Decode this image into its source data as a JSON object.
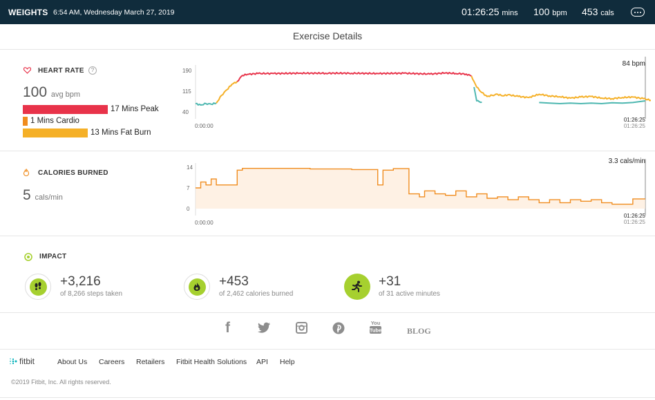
{
  "header": {
    "activity": "WEIGHTS",
    "datetime": "6:54 AM, Wednesday March 27, 2019",
    "duration_value": "01:26:25",
    "duration_unit": "mins",
    "bpm_value": "100",
    "bpm_unit": "bpm",
    "cals_value": "453",
    "cals_unit": "cals"
  },
  "page_title": "Exercise Details",
  "heart_rate": {
    "label": "HEART RATE",
    "help": "?",
    "avg_value": "100",
    "avg_unit": "avg bpm",
    "zones": [
      {
        "label": "17 Mins Peak",
        "color": "#e8334a"
      },
      {
        "label": "1 Mins Cardio",
        "color": "#f08c1e"
      },
      {
        "label": "13 Mins Fat Burn",
        "color": "#f5b027"
      }
    ],
    "current": "84 bpm",
    "start_time": "0:00:00",
    "end_time_1": "01:26:25",
    "end_time_2": "01:26:25"
  },
  "calories": {
    "label": "CALORIES BURNED",
    "avg_value": "5",
    "avg_unit": "cals/min",
    "current": "3.3 cals/min",
    "start_time": "0:00:00",
    "end_time_1": "01:26:25",
    "end_time_2": "01:26:25"
  },
  "impact": {
    "label": "IMPACT",
    "items": [
      {
        "value": "+3,216",
        "sub": "of 8,266 steps taken",
        "icon": "footsteps-icon"
      },
      {
        "value": "+453",
        "sub": "of 2,462 calories burned",
        "icon": "flame-icon"
      },
      {
        "value": "+31",
        "sub": "of 31 active minutes",
        "icon": "running-icon"
      }
    ]
  },
  "social": {
    "blog": "BLOG",
    "icons": [
      "facebook-icon",
      "twitter-icon",
      "instagram-icon",
      "pinterest-icon",
      "youtube-icon"
    ],
    "youtube_text": "You Tube"
  },
  "footer": {
    "brand": "fitbit",
    "links": [
      "About Us",
      "Careers",
      "Retailers",
      "Fitbit Health Solutions",
      "API",
      "Help"
    ],
    "copyright": "©2019 Fitbit, Inc. All rights reserved."
  },
  "chart_data": [
    {
      "type": "line",
      "title": "HEART RATE",
      "ylabel": "bpm",
      "yticks": [
        40,
        115,
        190
      ],
      "ylim": [
        40,
        190
      ],
      "xlim_minutes": [
        0,
        86.4
      ],
      "x_labels": [
        "0:00:00",
        "01:26:25"
      ],
      "series": [
        {
          "color": "#4db7b0",
          "x": [
            0,
            1,
            2,
            3,
            4
          ],
          "y": [
            70,
            65,
            70,
            68,
            72
          ]
        },
        {
          "color": "#f5b027",
          "x": [
            4,
            5,
            6,
            7,
            8
          ],
          "y": [
            72,
            100,
            120,
            140,
            150
          ]
        },
        {
          "color": "#e8334a",
          "x": [
            8,
            9,
            10,
            12,
            15,
            20,
            25,
            30,
            35,
            40,
            45,
            48,
            50,
            52,
            53
          ],
          "y": [
            150,
            172,
            176,
            179,
            179,
            180,
            180,
            180,
            179,
            180,
            177,
            181,
            179,
            177,
            170
          ]
        },
        {
          "color": "#f5b027",
          "x": [
            53,
            53.5,
            54,
            55,
            56,
            57,
            58,
            59,
            60,
            62,
            64,
            66,
            68,
            70,
            72,
            74,
            76,
            78,
            80,
            82,
            84,
            86,
            88
          ],
          "y": [
            170,
            150,
            130,
            110,
            96,
            100,
            104,
            98,
            102,
            96,
            92,
            104,
            98,
            95,
            90,
            94,
            96,
            90,
            88,
            92,
            94,
            88,
            80
          ]
        },
        {
          "color": "#4db7b0",
          "x": [
            53.5,
            54,
            55
          ],
          "y": [
            130,
            80,
            75
          ]
        }
      ]
    },
    {
      "type": "area",
      "title": "CALORIES BURNED",
      "ylabel": "cals/min",
      "yticks": [
        0,
        7,
        14
      ],
      "ylim": [
        0,
        14
      ],
      "xlim_minutes": [
        0,
        86.4
      ],
      "x_labels": [
        "0:00:00",
        "01:26:25"
      ],
      "series": [
        {
          "color": "#f08c1e"
        }
      ]
    }
  ]
}
